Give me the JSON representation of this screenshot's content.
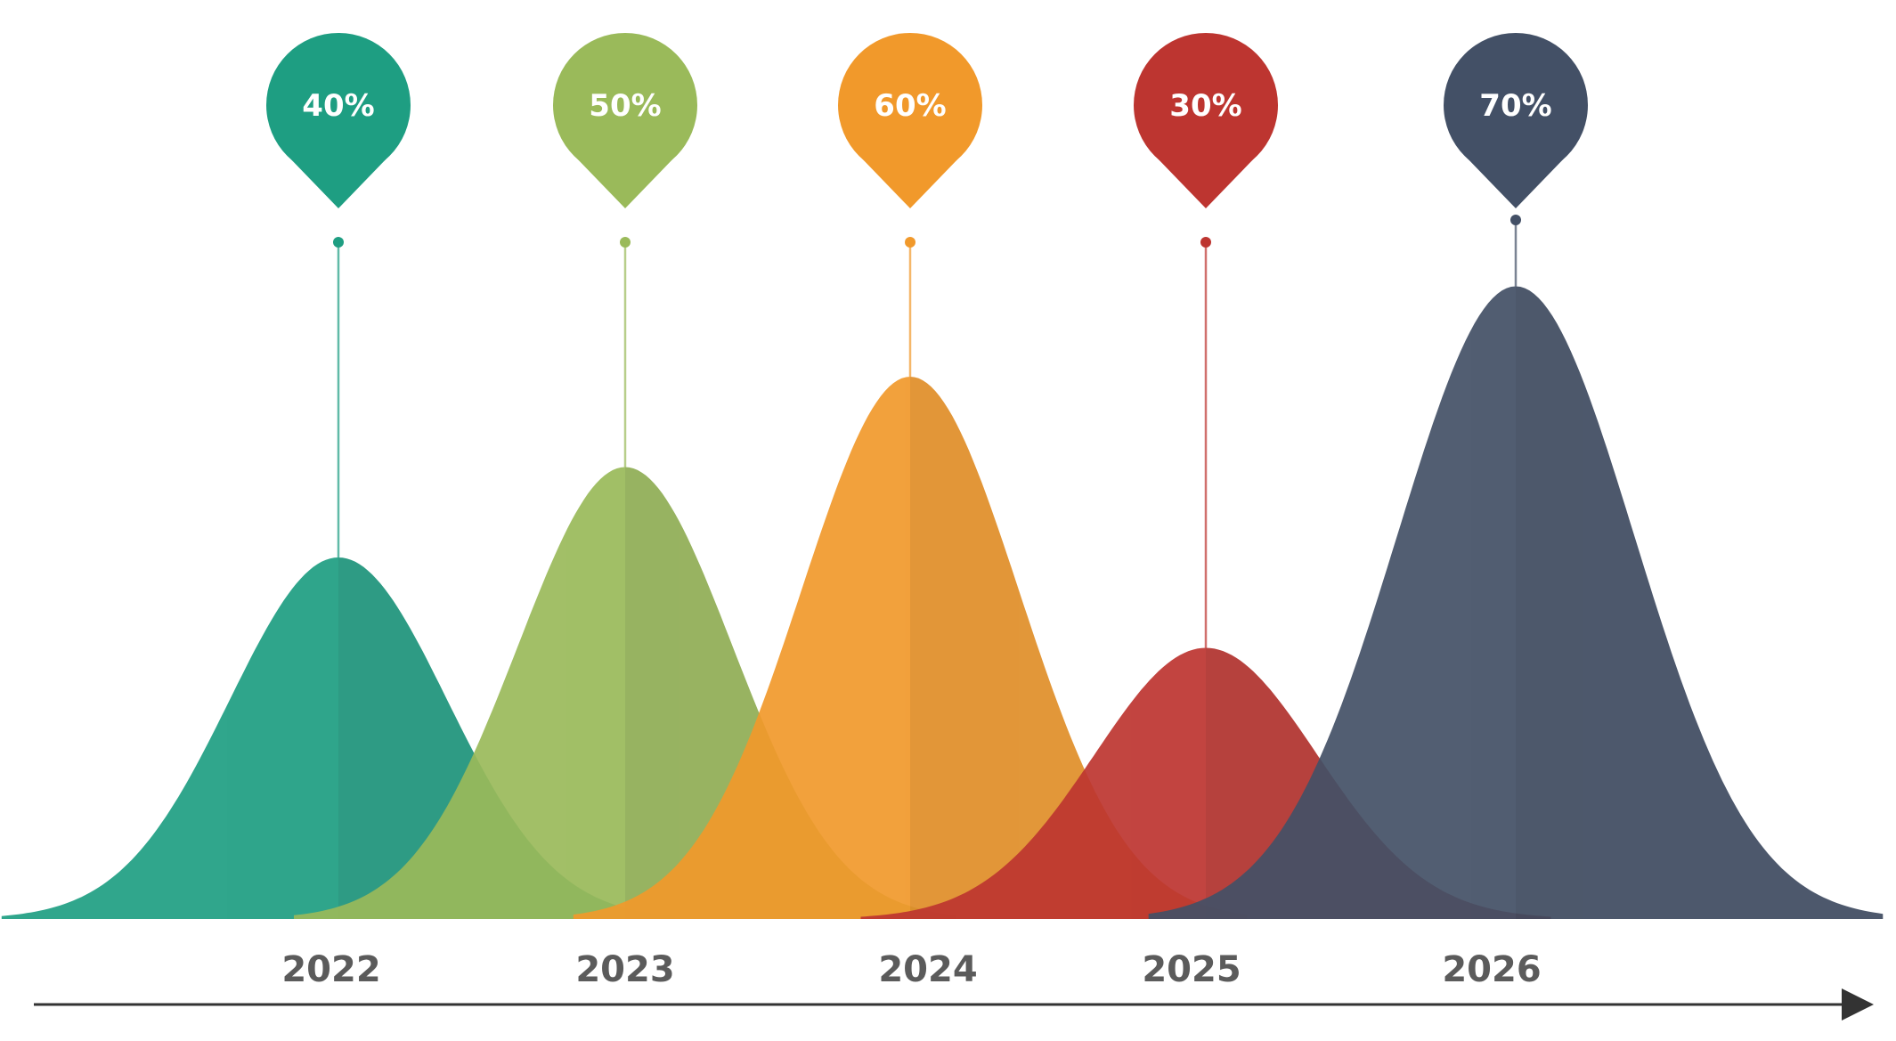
{
  "chart_data": {
    "type": "area",
    "categories": [
      "2022",
      "2023",
      "2024",
      "2025",
      "2026"
    ],
    "values": [
      40,
      50,
      60,
      30,
      70
    ],
    "labels": [
      "40%",
      "50%",
      "60%",
      "30%",
      "70%"
    ],
    "colors": [
      "#1e9e82",
      "#9aba5a",
      "#f1992b",
      "#bd3530",
      "#435066"
    ],
    "title": "",
    "xlabel": "",
    "ylabel": "",
    "grid": false,
    "legend": "none"
  }
}
